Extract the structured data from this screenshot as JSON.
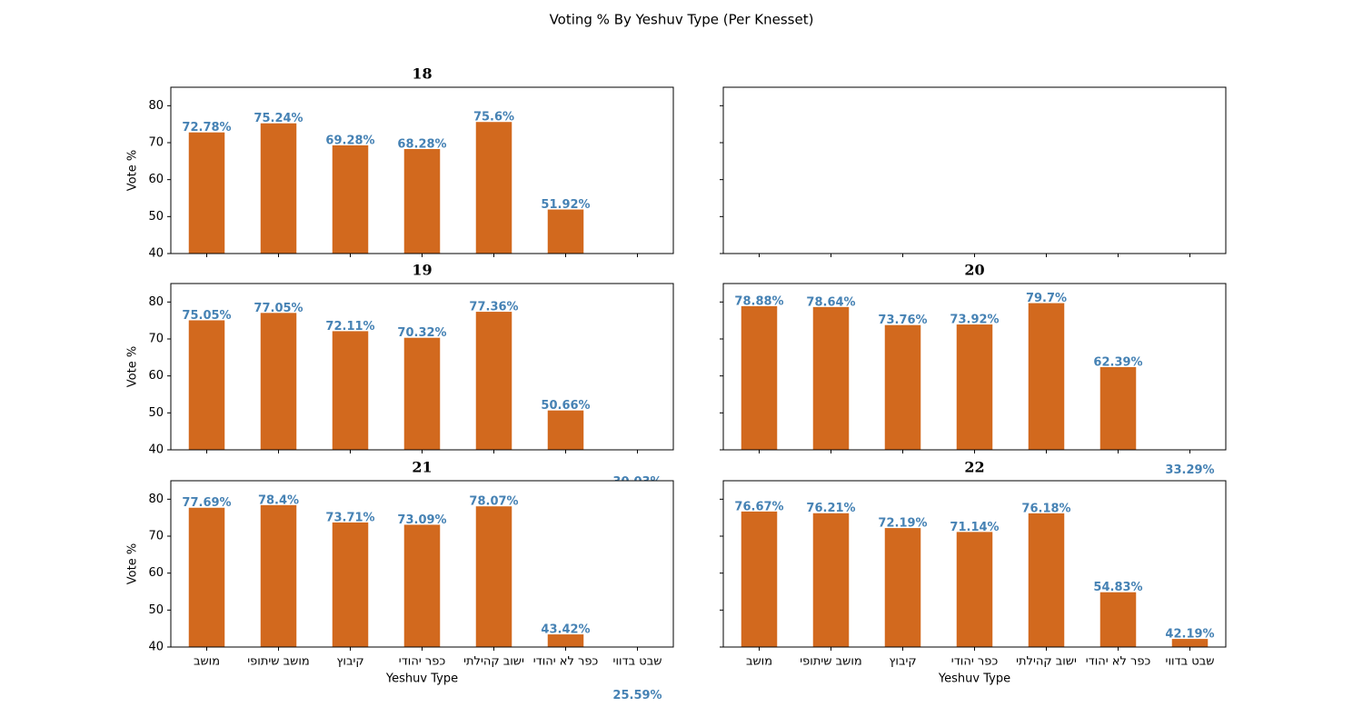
{
  "title": "Voting % By Yeshuv Type (Per Knesset)",
  "chart_data": [
    {
      "type": "bar",
      "title": "18",
      "color": "#d2691e",
      "label_color": "#4682b4",
      "values": [
        72.78,
        75.24,
        69.28,
        68.28,
        75.6,
        51.92,
        null
      ],
      "value_labels": [
        "72.78%",
        "75.24%",
        "69.28%",
        "68.28%",
        "75.6%",
        "51.92%",
        null
      ],
      "ylabel": "Vote %",
      "ylim": [
        40,
        85
      ],
      "yticks": [
        40,
        50,
        60,
        70,
        80
      ]
    },
    {
      "type": "bar",
      "title": "19",
      "color": "#d2691e",
      "label_color": "#4682b4",
      "values": [
        75.05,
        77.05,
        72.11,
        70.32,
        77.36,
        50.66,
        30.03
      ],
      "value_labels": [
        "75.05%",
        "77.05%",
        "72.11%",
        "70.32%",
        "77.36%",
        "50.66%",
        "30.03%"
      ],
      "ylabel": "Vote %",
      "ylim": [
        40,
        85
      ],
      "yticks": [
        40,
        50,
        60,
        70,
        80
      ]
    },
    {
      "type": "bar",
      "title": "20",
      "color": "#d2691e",
      "label_color": "#4682b4",
      "values": [
        78.88,
        78.64,
        73.76,
        73.92,
        79.7,
        62.39,
        33.29
      ],
      "value_labels": [
        "78.88%",
        "78.64%",
        "73.76%",
        "73.92%",
        "79.7%",
        "62.39%",
        "33.29%"
      ],
      "ylim": [
        40,
        85
      ],
      "yticks": [
        40,
        50,
        60,
        70,
        80
      ]
    },
    {
      "type": "bar",
      "title": "21",
      "color": "#d2691e",
      "label_color": "#4682b4",
      "categories": [
        "מושב",
        "מושב שיתופי",
        "קיבוץ",
        "כפר יהודי",
        "ישוב קהילתי",
        "כפר לא יהודי",
        "שבט בדווי"
      ],
      "values": [
        77.69,
        78.4,
        73.71,
        73.09,
        78.07,
        43.42,
        25.59
      ],
      "value_labels": [
        "77.69%",
        "78.4%",
        "73.71%",
        "73.09%",
        "78.07%",
        "43.42%",
        "25.59%"
      ],
      "xlabel": "Yeshuv Type",
      "ylabel": "Vote %",
      "ylim": [
        40,
        85
      ],
      "yticks": [
        40,
        50,
        60,
        70,
        80
      ]
    },
    {
      "type": "bar",
      "title": "22",
      "color": "#d2691e",
      "label_color": "#4682b4",
      "categories": [
        "מושב",
        "מושב שיתופי",
        "קיבוץ",
        "כפר יהודי",
        "ישוב קהילתי",
        "כפר לא יהודי",
        "שבט בדווי"
      ],
      "values": [
        76.67,
        76.21,
        72.19,
        71.14,
        76.18,
        54.83,
        42.19
      ],
      "value_labels": [
        "76.67%",
        "76.21%",
        "72.19%",
        "71.14%",
        "76.18%",
        "54.83%",
        "42.19%"
      ],
      "xlabel": "Yeshuv Type",
      "ylim": [
        40,
        85
      ],
      "yticks": [
        40,
        50,
        60,
        70,
        80
      ]
    }
  ]
}
